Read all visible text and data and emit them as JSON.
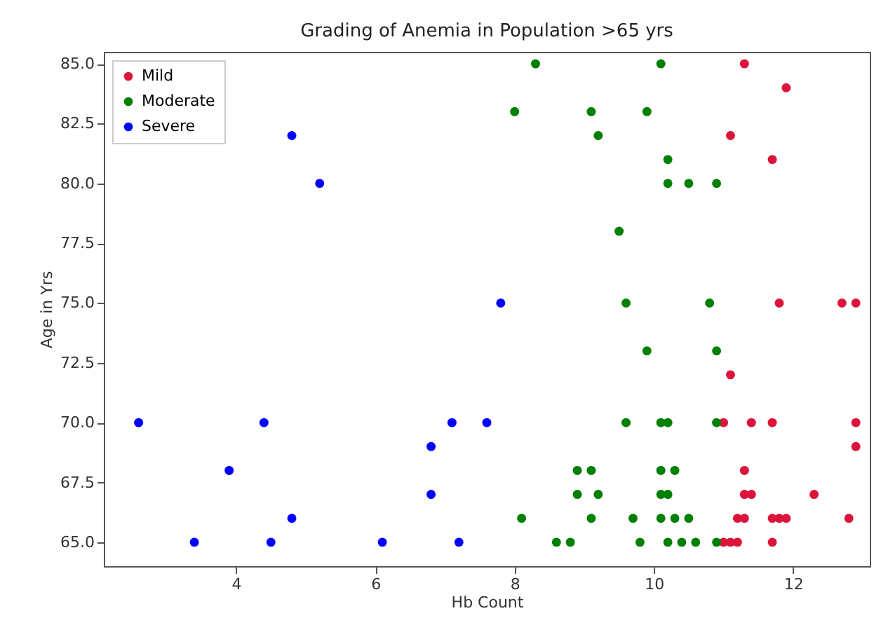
{
  "chart_data": {
    "type": "scatter",
    "title": "Grading of Anemia in Population >65 yrs",
    "xlabel": "Hb Count",
    "ylabel": "Age in Yrs",
    "xlim": [
      2.1,
      13.1
    ],
    "ylim": [
      64.0,
      85.5
    ],
    "xticks": [
      4,
      6,
      8,
      10,
      12
    ],
    "yticks": [
      {
        "value": 65,
        "label": "65.0"
      },
      {
        "value": 67.5,
        "label": "67.5"
      },
      {
        "value": 70,
        "label": "70.0"
      },
      {
        "value": 72.5,
        "label": "72.5"
      },
      {
        "value": 75,
        "label": "75.0"
      },
      {
        "value": 77.5,
        "label": "77.5"
      },
      {
        "value": 80,
        "label": "80.0"
      },
      {
        "value": 82.5,
        "label": "82.5"
      },
      {
        "value": 85,
        "label": "85.0"
      }
    ],
    "grid": false,
    "legend": "top left",
    "marker": "circle",
    "series": [
      {
        "name": "Mild",
        "color": "#dc143c",
        "x": [
          11.3,
          11.9,
          11.1,
          11.7,
          11.8,
          12.7,
          12.9,
          11.1,
          11.0,
          11.4,
          11.7,
          12.9,
          12.9,
          11.3,
          11.3,
          11.4,
          12.3,
          11.2,
          11.3,
          11.7,
          11.8,
          11.9,
          12.8,
          11.0,
          11.1,
          11.2,
          11.7
        ],
        "values": [
          85,
          84,
          82,
          81,
          75,
          75,
          75,
          72,
          70,
          70,
          70,
          70,
          69,
          68,
          67,
          67,
          67,
          66,
          66,
          66,
          66,
          66,
          66,
          65,
          65,
          65,
          65
        ]
      },
      {
        "name": "Moderate",
        "color": "#008000",
        "x": [
          8.3,
          10.1,
          8.0,
          9.1,
          9.9,
          9.2,
          10.2,
          10.2,
          10.5,
          10.9,
          9.5,
          9.6,
          10.8,
          9.9,
          10.9,
          9.6,
          10.1,
          10.2,
          10.9,
          8.9,
          9.1,
          10.1,
          10.3,
          8.9,
          9.2,
          10.1,
          10.2,
          8.1,
          9.1,
          9.7,
          10.1,
          10.3,
          10.5,
          8.6,
          8.8,
          9.8,
          10.2,
          10.4,
          10.6,
          10.9
        ],
        "values": [
          85,
          85,
          83,
          83,
          83,
          82,
          81,
          80,
          80,
          80,
          78,
          75,
          75,
          73,
          73,
          70,
          70,
          70,
          70,
          68,
          68,
          68,
          68,
          67,
          67,
          67,
          67,
          66,
          66,
          66,
          66,
          66,
          66,
          65,
          65,
          65,
          65,
          65,
          65,
          65
        ]
      },
      {
        "name": "Severe",
        "color": "#0000ff",
        "x": [
          4.8,
          5.2,
          7.8,
          2.6,
          4.4,
          7.1,
          7.6,
          6.8,
          3.9,
          6.8,
          4.8,
          3.4,
          4.5,
          6.1,
          7.2
        ],
        "values": [
          82,
          80,
          75,
          70,
          70,
          70,
          70,
          69,
          68,
          67,
          66,
          65,
          65,
          65,
          65
        ]
      }
    ]
  }
}
